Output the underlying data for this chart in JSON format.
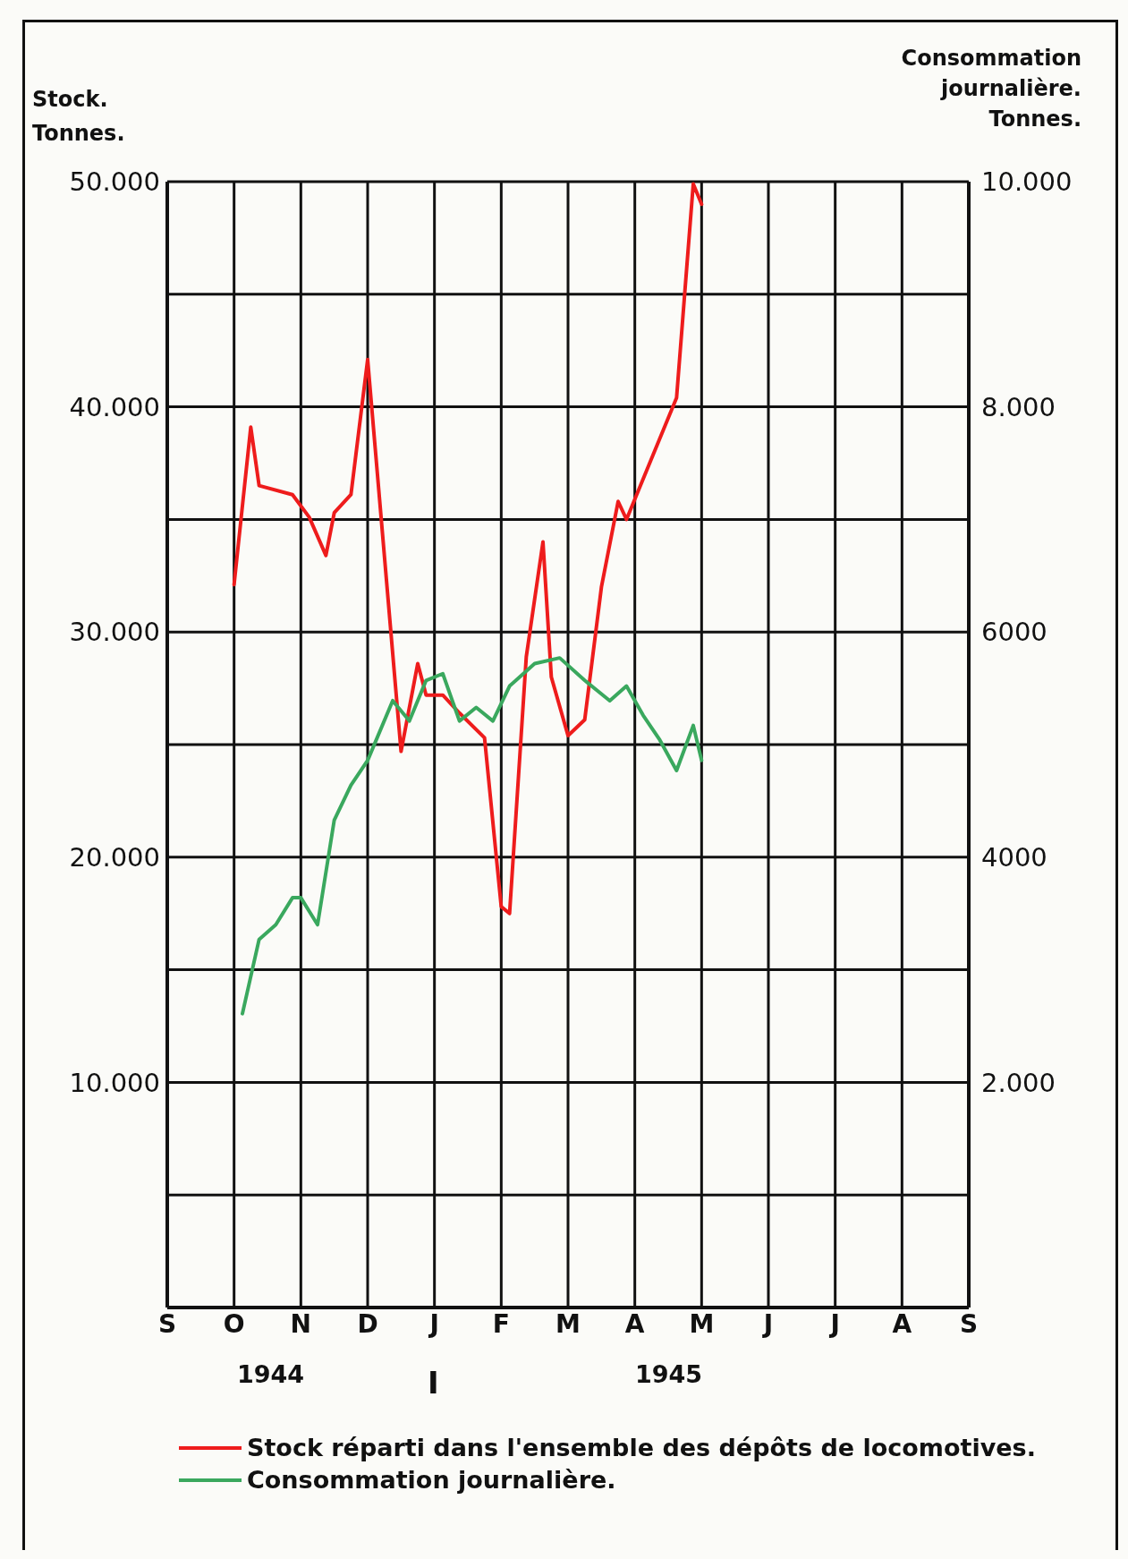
{
  "chart_data": {
    "type": "line",
    "ylabel": "Stock.\nTonnes.",
    "y2label": "Consommation\njournalière.\nTonnes.",
    "categories": [
      "S",
      null,
      null,
      null,
      null,
      null,
      null,
      null,
      "O",
      null,
      null,
      null,
      null,
      null,
      null,
      null,
      "N",
      null,
      null,
      null,
      null,
      null,
      null,
      null,
      "D",
      null,
      null,
      null,
      null,
      null,
      null,
      null,
      "J",
      null,
      null,
      null,
      null,
      null,
      null,
      null,
      "F",
      null,
      null,
      null,
      null,
      null,
      null,
      null,
      "M",
      null,
      null,
      null,
      null,
      null,
      null,
      null,
      "A",
      null,
      null,
      null,
      null,
      null,
      null,
      null,
      "M",
      null,
      null,
      null,
      null,
      null,
      null,
      null,
      "J",
      null,
      null,
      null,
      null,
      null,
      null,
      null,
      "J",
      null,
      null,
      null,
      null,
      null,
      null,
      null,
      "A",
      null,
      null,
      null,
      null,
      null,
      null,
      null,
      "S"
    ],
    "ylim": [
      0,
      50000
    ],
    "yticks": [
      {
        "value": 0,
        "label": null
      },
      {
        "value": 5000,
        "label": null
      },
      {
        "value": 10000,
        "label": "10.000"
      },
      {
        "value": 15000,
        "label": null
      },
      {
        "value": 20000,
        "label": "20.000"
      },
      {
        "value": 25000,
        "label": null
      },
      {
        "value": 30000,
        "label": "30.000"
      },
      {
        "value": 35000,
        "label": null
      },
      {
        "value": 40000,
        "label": "40.000"
      },
      {
        "value": 45000,
        "label": null
      },
      {
        "value": 50000,
        "label": "50.000"
      }
    ],
    "y2lim": [
      0,
      10000
    ],
    "y2ticks": [
      {
        "value": 2000,
        "label": "2.000"
      },
      {
        "value": 4000,
        "label": "4000"
      },
      {
        "value": 6000,
        "label": "6000"
      },
      {
        "value": 8000,
        "label": "8.000"
      },
      {
        "value": 10000,
        "label": "10.000"
      }
    ],
    "grid": true,
    "legend": "bottom",
    "annotations": [
      "1944",
      "I",
      "1945"
    ],
    "series": [
      {
        "name": "Stock réparti dans l'ensemble des dépôts de locomotives.",
        "color": "#ee1c1c",
        "values": [
          null,
          null,
          null,
          null,
          null,
          null,
          null,
          null,
          32100,
          null,
          39100,
          36500,
          null,
          null,
          null,
          36100,
          null,
          35100,
          null,
          33400,
          35300,
          null,
          36100,
          null,
          42100,
          null,
          null,
          null,
          24700,
          null,
          28600,
          27200,
          null,
          27200,
          null,
          26400,
          null,
          null,
          25300,
          null,
          17800,
          17500,
          null,
          28900,
          null,
          34000,
          28000,
          null,
          25400,
          null,
          26100,
          null,
          32000,
          null,
          35800,
          35000,
          null,
          null,
          null,
          null,
          null,
          40400,
          null,
          49900,
          49000,
          null,
          null,
          null,
          null,
          null,
          null,
          null,
          null,
          null,
          null,
          null,
          null,
          null,
          null,
          null,
          null,
          null,
          null,
          null,
          null,
          null,
          null,
          null,
          null,
          null,
          null,
          null,
          null,
          null,
          null,
          null,
          null
        ]
      },
      {
        "name": "Consommation journalière.",
        "color": "#3aa85e",
        "axis": "y2",
        "values": [
          null,
          null,
          null,
          null,
          null,
          null,
          null,
          null,
          null,
          2610,
          null,
          3270,
          null,
          3400,
          null,
          3640,
          3640,
          null,
          3400,
          null,
          4330,
          null,
          4640,
          null,
          4860,
          null,
          null,
          5390,
          null,
          5210,
          null,
          5570,
          null,
          5630,
          null,
          5210,
          null,
          5330,
          null,
          5210,
          null,
          5520,
          null,
          null,
          5720,
          null,
          null,
          5770,
          null,
          null,
          5570,
          null,
          null,
          5390,
          null,
          5520,
          null,
          5260,
          null,
          5040,
          null,
          4770,
          null,
          5170,
          4860,
          null,
          null,
          null,
          null,
          null,
          null,
          null,
          null,
          null,
          null,
          null,
          null,
          null,
          null,
          null,
          null,
          null,
          null,
          null,
          null,
          null,
          null,
          null,
          null,
          null,
          null,
          null,
          null,
          null,
          null,
          null,
          null
        ]
      }
    ]
  }
}
